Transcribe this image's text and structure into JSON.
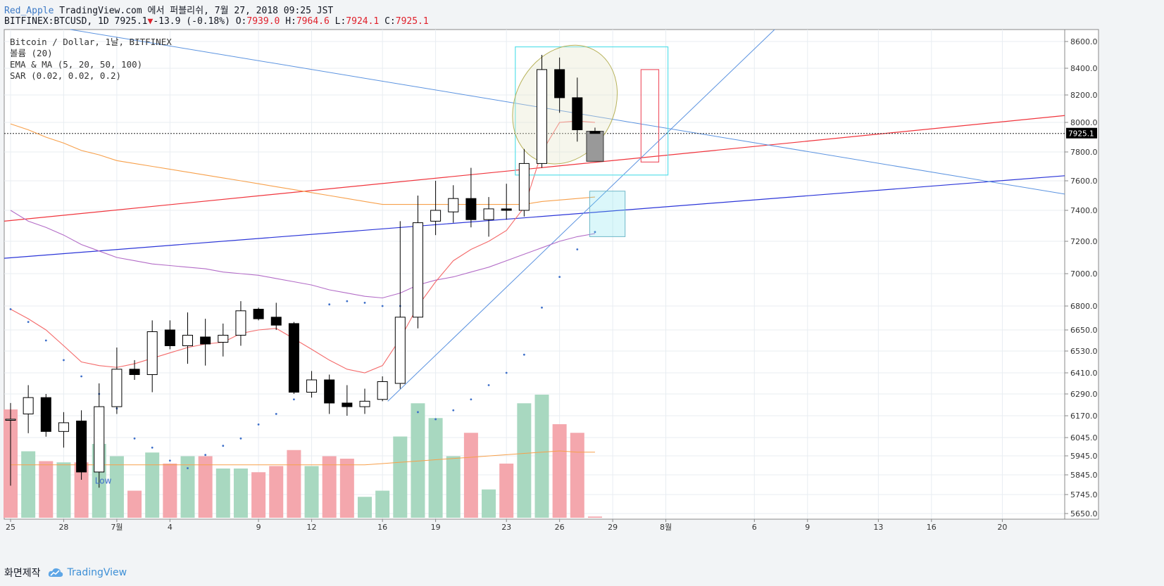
{
  "header": {
    "author": "Red_Apple",
    "published": "TradingView.com 에서 퍼블리쉬, 7월 27, 2018 09:25 JST",
    "symbol": "BITFINEX:BTCUSD, 1D 7925.1",
    "change_arrow": "▼",
    "change": "-13.9 (-0.18%)",
    "o_label": "O:",
    "o_value": "7939.0",
    "h_label": "H:",
    "h_value": "7964.6",
    "l_label": "L:",
    "l_value": "7924.1",
    "c_label": "C:",
    "c_value": "7925.1"
  },
  "legend": [
    "Bitcoin / Dollar, 1날, BITFINEX",
    "볼륨 (20)",
    "EMA & MA (5, 20, 50, 100)",
    "SAR (0.02, 0.02, 0.2)"
  ],
  "footer": {
    "made_by": "화면제작",
    "brand": "TradingView"
  },
  "colors": {
    "up_candle": "#ffffff",
    "down_candle": "#000000",
    "up_volume": "#a8d8c0",
    "down_volume": "#f4a7ad",
    "ema5": "#f46a6a",
    "ma50": "#b36cc7",
    "ma100": "#f7a04b",
    "sar": "#3d6fc9",
    "trend_red": "#f0343c",
    "trend_blue": "#2b35d8",
    "trend_lightblue": "#5b93e0",
    "box_cyan": "#5ae0ea"
  },
  "chart_data": {
    "type": "candlestick",
    "symbol": "BITFINEX:BTCUSD",
    "interval": "1D",
    "last_price": "7925.1",
    "y_ticks": [
      "8600.0",
      "8400.0",
      "8200.0",
      "8000.0",
      "7800.0",
      "7600.0",
      "7400.0",
      "7200.0",
      "7000.0",
      "6800.0",
      "6650.0",
      "6530.0",
      "6410.0",
      "6290.0",
      "6170.0",
      "6045.0",
      "5945.0",
      "5845.0",
      "5745.0",
      "5650.0"
    ],
    "x_ticks": [
      {
        "label": "25",
        "day": 0
      },
      {
        "label": "28",
        "day": 3
      },
      {
        "label": "7월",
        "day": 6
      },
      {
        "label": "4",
        "day": 9
      },
      {
        "label": "9",
        "day": 14
      },
      {
        "label": "12",
        "day": 17
      },
      {
        "label": "16",
        "day": 21
      },
      {
        "label": "19",
        "day": 24
      },
      {
        "label": "23",
        "day": 28
      },
      {
        "label": "26",
        "day": 31
      },
      {
        "label": "29",
        "day": 34
      },
      {
        "label": "8월",
        "day": 37
      },
      {
        "label": "6",
        "day": 42
      },
      {
        "label": "9",
        "day": 45
      },
      {
        "label": "13",
        "day": 49
      },
      {
        "label": "16",
        "day": 52
      },
      {
        "label": "20",
        "day": 56
      }
    ],
    "candles": [
      {
        "o": 6150,
        "h": 6240,
        "l": 5790,
        "c": 6150
      },
      {
        "o": 6180,
        "h": 6340,
        "l": 6070,
        "c": 6270
      },
      {
        "o": 6270,
        "h": 6290,
        "l": 6050,
        "c": 6080
      },
      {
        "o": 6080,
        "h": 6190,
        "l": 5990,
        "c": 6130
      },
      {
        "o": 6140,
        "h": 6200,
        "l": 5820,
        "c": 5860
      },
      {
        "o": 5860,
        "h": 6350,
        "l": 5780,
        "c": 6220
      },
      {
        "o": 6220,
        "h": 6550,
        "l": 6180,
        "c": 6430
      },
      {
        "o": 6430,
        "h": 6480,
        "l": 6370,
        "c": 6400
      },
      {
        "o": 6400,
        "h": 6710,
        "l": 6300,
        "c": 6640
      },
      {
        "o": 6650,
        "h": 6710,
        "l": 6540,
        "c": 6560
      },
      {
        "o": 6560,
        "h": 6760,
        "l": 6460,
        "c": 6620
      },
      {
        "o": 6610,
        "h": 6720,
        "l": 6450,
        "c": 6570
      },
      {
        "o": 6580,
        "h": 6690,
        "l": 6500,
        "c": 6620
      },
      {
        "o": 6620,
        "h": 6830,
        "l": 6560,
        "c": 6770
      },
      {
        "o": 6780,
        "h": 6790,
        "l": 6710,
        "c": 6720
      },
      {
        "o": 6730,
        "h": 6820,
        "l": 6650,
        "c": 6680
      },
      {
        "o": 6690,
        "h": 6700,
        "l": 6290,
        "c": 6300
      },
      {
        "o": 6300,
        "h": 6420,
        "l": 6270,
        "c": 6370
      },
      {
        "o": 6370,
        "h": 6400,
        "l": 6180,
        "c": 6240
      },
      {
        "o": 6240,
        "h": 6340,
        "l": 6170,
        "c": 6220
      },
      {
        "o": 6220,
        "h": 6320,
        "l": 6180,
        "c": 6250
      },
      {
        "o": 6260,
        "h": 6390,
        "l": 6250,
        "c": 6360
      },
      {
        "o": 6350,
        "h": 7330,
        "l": 6320,
        "c": 6730
      },
      {
        "o": 6730,
        "h": 7500,
        "l": 6660,
        "c": 7320
      },
      {
        "o": 7330,
        "h": 7600,
        "l": 7240,
        "c": 7400
      },
      {
        "o": 7390,
        "h": 7570,
        "l": 7320,
        "c": 7480
      },
      {
        "o": 7480,
        "h": 7690,
        "l": 7290,
        "c": 7340
      },
      {
        "o": 7340,
        "h": 7490,
        "l": 7230,
        "c": 7410
      },
      {
        "o": 7410,
        "h": 7580,
        "l": 7340,
        "c": 7400
      },
      {
        "o": 7400,
        "h": 7820,
        "l": 7360,
        "c": 7720
      },
      {
        "o": 7720,
        "h": 8500,
        "l": 7690,
        "c": 8390
      },
      {
        "o": 8390,
        "h": 8480,
        "l": 8070,
        "c": 8180
      },
      {
        "o": 8180,
        "h": 8330,
        "l": 7870,
        "c": 7950
      },
      {
        "o": 7939,
        "h": 7964.6,
        "l": 7924.1,
        "c": 7925.1
      }
    ],
    "volume": [
      {
        "v": 0.88,
        "up": false
      },
      {
        "v": 0.54,
        "up": true
      },
      {
        "v": 0.46,
        "up": false
      },
      {
        "v": 0.45,
        "up": true
      },
      {
        "v": 0.45,
        "up": false
      },
      {
        "v": 0.6,
        "up": true
      },
      {
        "v": 0.5,
        "up": true
      },
      {
        "v": 0.22,
        "up": false
      },
      {
        "v": 0.53,
        "up": true
      },
      {
        "v": 0.44,
        "up": false
      },
      {
        "v": 0.5,
        "up": true
      },
      {
        "v": 0.5,
        "up": false
      },
      {
        "v": 0.4,
        "up": true
      },
      {
        "v": 0.4,
        "up": true
      },
      {
        "v": 0.37,
        "up": false
      },
      {
        "v": 0.42,
        "up": false
      },
      {
        "v": 0.55,
        "up": false
      },
      {
        "v": 0.42,
        "up": true
      },
      {
        "v": 0.5,
        "up": false
      },
      {
        "v": 0.48,
        "up": false
      },
      {
        "v": 0.17,
        "up": true
      },
      {
        "v": 0.22,
        "up": true
      },
      {
        "v": 0.66,
        "up": true
      },
      {
        "v": 0.93,
        "up": true
      },
      {
        "v": 0.81,
        "up": true
      },
      {
        "v": 0.5,
        "up": true
      },
      {
        "v": 0.69,
        "up": false
      },
      {
        "v": 0.23,
        "up": true
      },
      {
        "v": 0.44,
        "up": false
      },
      {
        "v": 0.93,
        "up": true
      },
      {
        "v": 1.0,
        "up": true
      },
      {
        "v": 0.76,
        "up": false
      },
      {
        "v": 0.69,
        "up": false
      },
      {
        "v": 0.01,
        "up": false
      }
    ],
    "ema5": [
      6780,
      6720,
      6650,
      6560,
      6470,
      6450,
      6440,
      6460,
      6490,
      6520,
      6550,
      6570,
      6580,
      6630,
      6650,
      6660,
      6600,
      6540,
      6480,
      6430,
      6410,
      6450,
      6600,
      6800,
      6950,
      7080,
      7150,
      7200,
      7270,
      7420,
      7800,
      8000,
      8010,
      8000
    ],
    "ma50_short": [
      7400,
      7330,
      7290,
      7240,
      7180,
      7140,
      7100,
      7080,
      7060,
      7050,
      7040,
      7030,
      7010,
      7000,
      6990,
      6970,
      6950,
      6930,
      6900,
      6880,
      6860,
      6850,
      6880,
      6930,
      6960,
      6980,
      7010,
      7040,
      7080,
      7120,
      7160,
      7200,
      7230,
      7250
    ],
    "ma100": [
      7990,
      7950,
      7900,
      7860,
      7810,
      7780,
      7740,
      7720,
      7700,
      7680,
      7660,
      7640,
      7620,
      7600,
      7580,
      7560,
      7540,
      7520,
      7500,
      7480,
      7460,
      7440,
      7440,
      7440,
      7440,
      7440,
      7440,
      7440,
      7440,
      7440,
      7460,
      7470,
      7480,
      7490
    ],
    "sar": [
      6780,
      6700,
      6590,
      6480,
      6390,
      6290,
      6210,
      6040,
      5990,
      5920,
      5880,
      5950,
      6000,
      6040,
      6120,
      6180,
      6260,
      6330,
      6810,
      6830,
      6820,
      6800,
      6800,
      6190,
      6150,
      6200,
      6260,
      6340,
      6410,
      6510,
      6790,
      6980,
      7150,
      7260
    ],
    "annotations": {
      "low_label": "Low"
    }
  }
}
